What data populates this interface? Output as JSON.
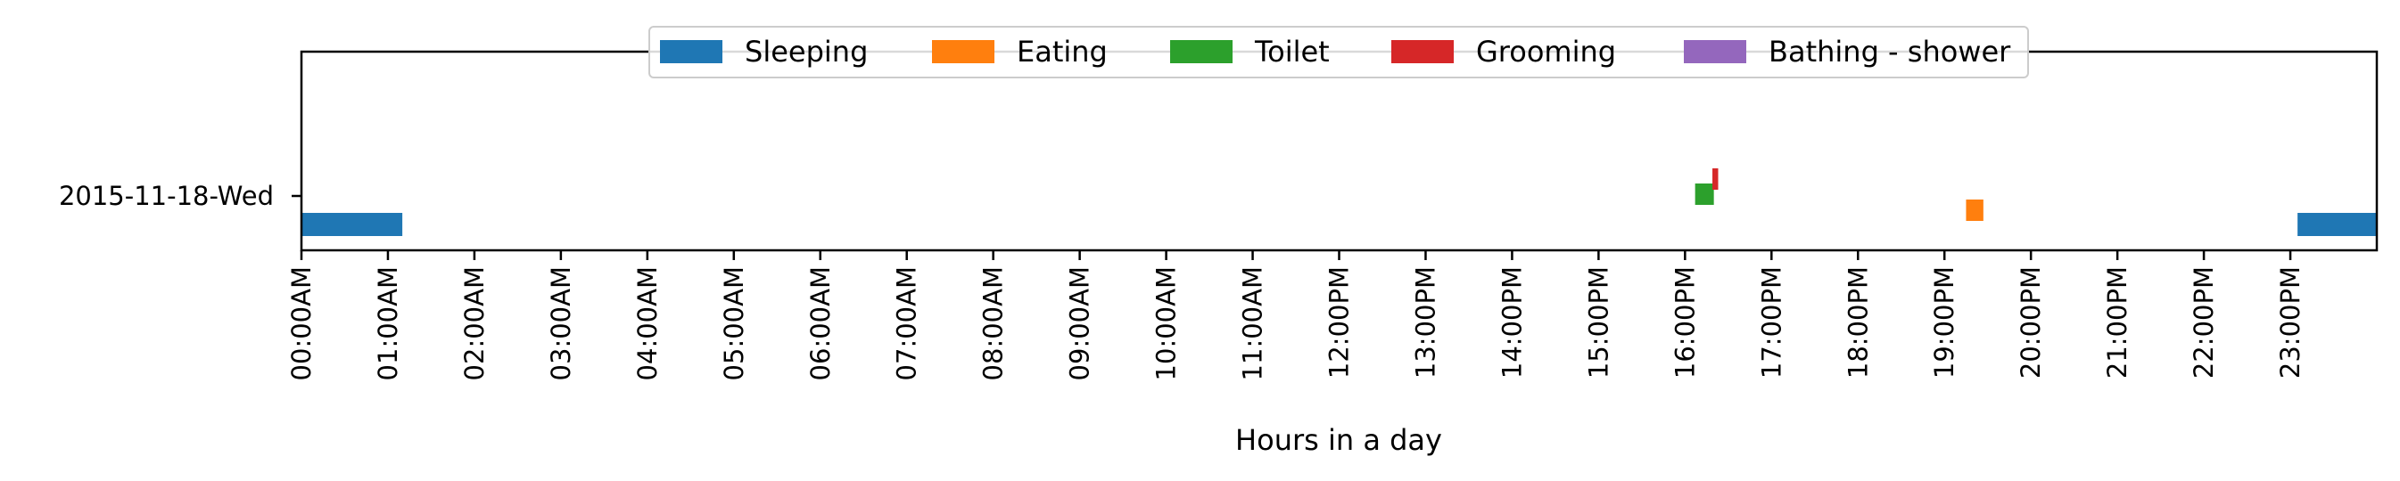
{
  "chart_data": {
    "type": "timeline",
    "title": "",
    "xlabel": "Hours in a day",
    "ylabel": "",
    "xlim_hours": [
      0,
      24
    ],
    "grid": false,
    "legend_position": "upper center",
    "y_categories": [
      "2015-11-18-Wed"
    ],
    "x_tick_labels": [
      "00:00AM",
      "01:00AM",
      "02:00AM",
      "03:00AM",
      "04:00AM",
      "05:00AM",
      "06:00AM",
      "07:00AM",
      "08:00AM",
      "09:00AM",
      "10:00AM",
      "11:00AM",
      "12:00PM",
      "13:00PM",
      "14:00PM",
      "15:00PM",
      "16:00PM",
      "17:00PM",
      "18:00PM",
      "19:00PM",
      "20:00PM",
      "21:00PM",
      "22:00PM",
      "23:00PM"
    ],
    "series": [
      {
        "name": "Sleeping",
        "color": "#1f77b4",
        "intervals": [
          {
            "start": "00:00",
            "end": "01:10"
          },
          {
            "start": "23:05",
            "end": "24:00"
          }
        ]
      },
      {
        "name": "Eating",
        "color": "#ff7f0e",
        "intervals": [
          {
            "start": "19:15",
            "end": "19:27"
          }
        ]
      },
      {
        "name": "Toilet",
        "color": "#2ca02c",
        "intervals": [
          {
            "start": "16:07",
            "end": "16:20"
          }
        ]
      },
      {
        "name": "Grooming",
        "color": "#d62728",
        "intervals": [
          {
            "start": "16:19",
            "end": "16:23"
          }
        ]
      },
      {
        "name": "Bathing - shower",
        "color": "#9467bd",
        "intervals": []
      }
    ]
  }
}
